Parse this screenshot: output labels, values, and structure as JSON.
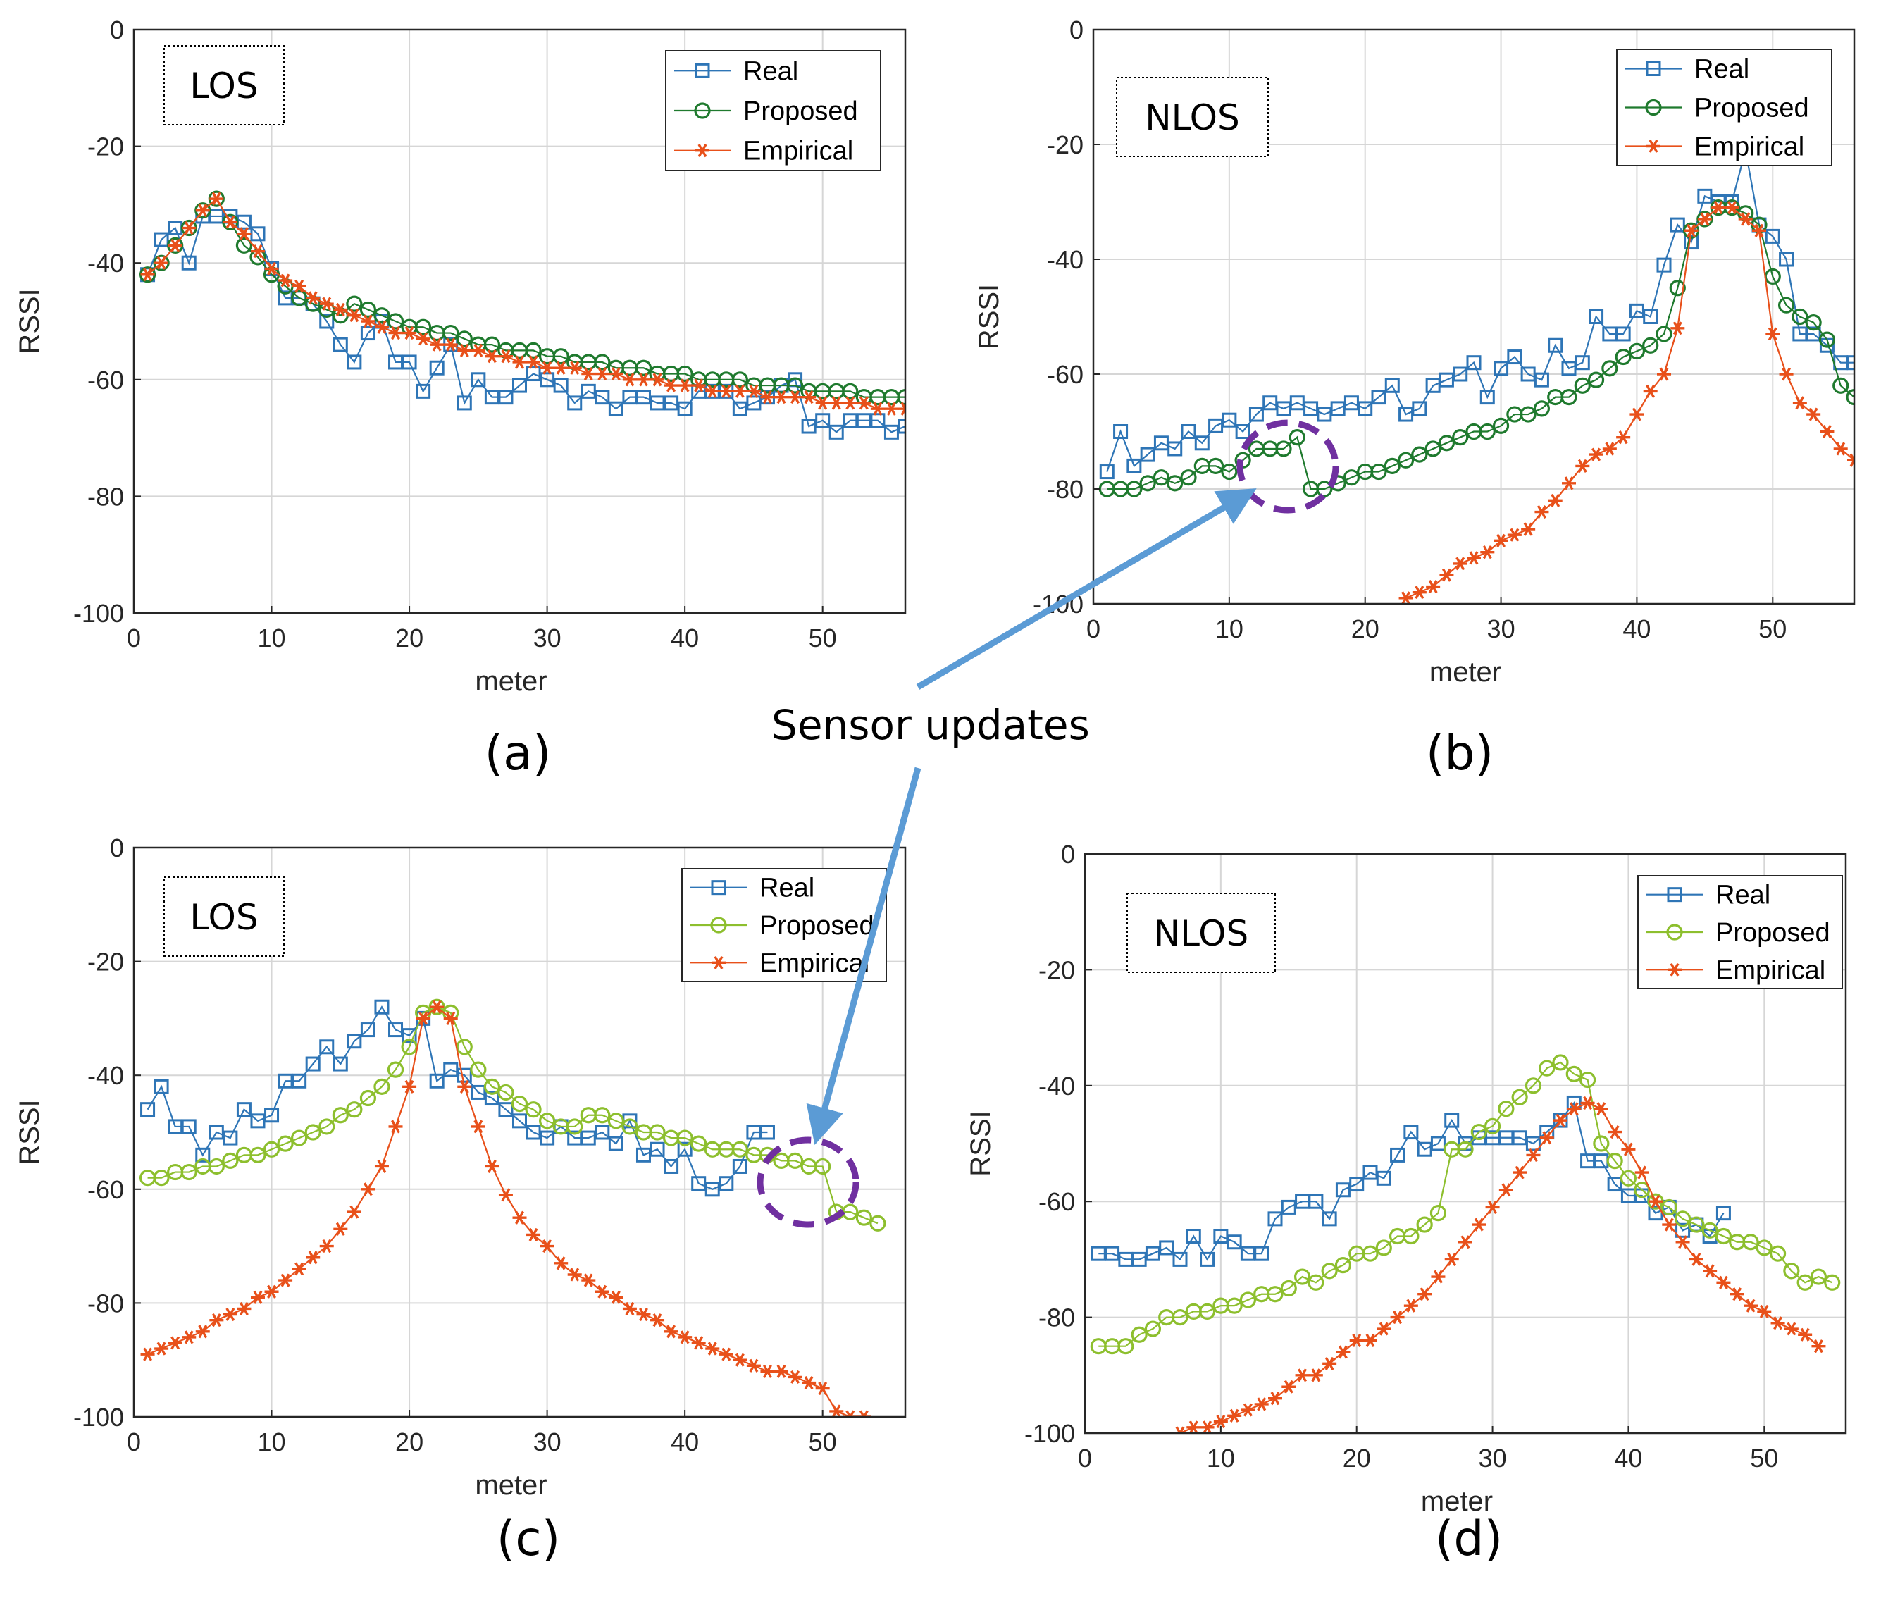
{
  "annotation": {
    "text": "Sensor updates"
  },
  "chart_data": [
    {
      "panel": "(a)",
      "type": "line",
      "tag": "LOS",
      "xlabel": "meter",
      "ylabel": "RSSI",
      "xlim": [
        0,
        56
      ],
      "ylim": [
        -100,
        0
      ],
      "xticks": [
        0,
        10,
        20,
        30,
        40,
        50
      ],
      "yticks": [
        0,
        -20,
        -40,
        -60,
        -80,
        -100
      ],
      "grid": true,
      "legend_position": "top-right",
      "series": [
        {
          "name": "Real",
          "marker": "square",
          "color": "#2E75B6",
          "x_start": 1,
          "values": [
            -42,
            -36,
            -34,
            -40,
            -32,
            -32,
            -32,
            -33,
            -35,
            -41,
            -46,
            -46,
            -47,
            -50,
            -54,
            -57,
            -52,
            -50,
            -57,
            -57,
            -62,
            -58,
            -54,
            -64,
            -60,
            -63,
            -63,
            -61,
            -59,
            -60,
            -61,
            -64,
            -62,
            -63,
            -65,
            -63,
            -63,
            -64,
            -64,
            -65,
            -62,
            -62,
            -62,
            -65,
            -64,
            -63,
            -61,
            -60,
            -68,
            -67,
            -69,
            -67,
            -67,
            -67,
            -69,
            -68
          ]
        },
        {
          "name": "Proposed",
          "marker": "circle",
          "color": "#1F7A2E",
          "x_start": 1,
          "values": [
            -42,
            -40,
            -37,
            -34,
            -31,
            -29,
            -33,
            -37,
            -39,
            -42,
            -44,
            -46,
            -47,
            -48,
            -49,
            -47,
            -48,
            -49,
            -50,
            -51,
            -51,
            -52,
            -52,
            -53,
            -54,
            -54,
            -55,
            -55,
            -55,
            -56,
            -56,
            -57,
            -57,
            -57,
            -58,
            -58,
            -58,
            -59,
            -59,
            -59,
            -60,
            -60,
            -60,
            -60,
            -61,
            -61,
            -61,
            -61,
            -62,
            -62,
            -62,
            -62,
            -63,
            -63,
            -63,
            -63
          ]
        },
        {
          "name": "Empirical",
          "marker": "star",
          "color": "#E8501A",
          "x_start": 1,
          "values": [
            -42,
            -40,
            -37,
            -34,
            -31,
            -29,
            -33,
            -35,
            -38,
            -41,
            -43,
            -44,
            -46,
            -47,
            -48,
            -49,
            -50,
            -51,
            -52,
            -52,
            -53,
            -54,
            -54,
            -55,
            -55,
            -56,
            -56,
            -57,
            -57,
            -58,
            -58,
            -58,
            -59,
            -59,
            -59,
            -60,
            -60,
            -60,
            -61,
            -61,
            -61,
            -62,
            -62,
            -62,
            -62,
            -63,
            -63,
            -63,
            -63,
            -64,
            -64,
            -64,
            -64,
            -65,
            -65,
            -65
          ]
        }
      ]
    },
    {
      "panel": "(b)",
      "type": "line",
      "tag": "NLOS",
      "xlabel": "meter",
      "ylabel": "RSSI",
      "xlim": [
        0,
        56
      ],
      "ylim": [
        -100,
        0
      ],
      "xticks": [
        0,
        10,
        20,
        30,
        40,
        50
      ],
      "yticks": [
        0,
        -20,
        -40,
        -60,
        -80,
        -100
      ],
      "grid": true,
      "legend_position": "top-right",
      "series": [
        {
          "name": "Real",
          "marker": "square",
          "color": "#2E75B6",
          "x_start": 1,
          "values": [
            -77,
            -70,
            -76,
            -74,
            -72,
            -73,
            -70,
            -72,
            -69,
            -68,
            -70,
            -67,
            -65,
            -66,
            -65,
            -66,
            -67,
            -66,
            -65,
            -66,
            -64,
            -62,
            -67,
            -66,
            -62,
            -61,
            -60,
            -58,
            -64,
            -59,
            -57,
            -60,
            -61,
            -55,
            -59,
            -58,
            -50,
            -53,
            -53,
            -49,
            -50,
            -41,
            -34,
            -37,
            -29,
            -30,
            -30,
            -21,
            -34,
            -36,
            -40,
            -53,
            -53,
            -55,
            -58,
            -58
          ]
        },
        {
          "name": "Proposed",
          "marker": "circle",
          "color": "#1F7A2E",
          "x_start": 1,
          "values": [
            -80,
            -80,
            -80,
            -79,
            -78,
            -79,
            -78,
            -76,
            -76,
            -77,
            -75,
            -73,
            -73,
            -73,
            -71,
            -80,
            -80,
            -79,
            -78,
            -77,
            -77,
            -76,
            -75,
            -74,
            -73,
            -72,
            -71,
            -70,
            -70,
            -69,
            -67,
            -67,
            -66,
            -64,
            -64,
            -62,
            -61,
            -59,
            -57,
            -56,
            -55,
            -53,
            -45,
            -35,
            -33,
            -31,
            -31,
            -32,
            -34,
            -43,
            -48,
            -50,
            -51,
            -54,
            -62,
            -64
          ]
        },
        {
          "name": "Empirical",
          "marker": "star",
          "color": "#E8501A",
          "x_start": 23,
          "values": [
            -99,
            -98,
            -97,
            -95,
            -93,
            -92,
            -91,
            -89,
            -88,
            -87,
            -84,
            -82,
            -79,
            -76,
            -74,
            -73,
            -71,
            -67,
            -63,
            -60,
            -52,
            -35,
            -33,
            -31,
            -31,
            -33,
            -35,
            -53,
            -60,
            -65,
            -67,
            -70,
            -73,
            -75
          ]
        }
      ]
    },
    {
      "panel": "(c)",
      "type": "line",
      "tag": "LOS",
      "xlabel": "meter",
      "ylabel": "RSSI",
      "xlim": [
        0,
        56
      ],
      "ylim": [
        -100,
        0
      ],
      "xticks": [
        0,
        10,
        20,
        30,
        40,
        50
      ],
      "yticks": [
        0,
        -20,
        -40,
        -60,
        -80,
        -100
      ],
      "grid": true,
      "legend_position": "top-right",
      "series": [
        {
          "name": "Real",
          "marker": "square",
          "color": "#2E75B6",
          "x_start": 1,
          "values": [
            -46,
            -42,
            -49,
            -49,
            -54,
            -50,
            -51,
            -46,
            -48,
            -47,
            -41,
            -41,
            -38,
            -35,
            -38,
            -34,
            -32,
            -28,
            -32,
            -33,
            -30,
            -41,
            -39,
            -40,
            -43,
            -44,
            -46,
            -48,
            -50,
            -51,
            -49,
            -51,
            -51,
            -50,
            -52,
            -48,
            -54,
            -53,
            -56,
            -53,
            -59,
            -60,
            -59,
            -56,
            -50,
            -50
          ]
        },
        {
          "name": "Proposed",
          "marker": "circle",
          "color": "#8DBF2E",
          "x_start": 1,
          "values": [
            -58,
            -58,
            -57,
            -57,
            -56,
            -56,
            -55,
            -54,
            -54,
            -53,
            -52,
            -51,
            -50,
            -49,
            -47,
            -46,
            -44,
            -42,
            -39,
            -35,
            -29,
            -28,
            -29,
            -35,
            -39,
            -42,
            -43,
            -45,
            -46,
            -48,
            -49,
            -49,
            -47,
            -47,
            -48,
            -49,
            -50,
            -50,
            -51,
            -51,
            -52,
            -53,
            -53,
            -53,
            -54,
            -54,
            -55,
            -55,
            -56,
            -56,
            -64,
            -64,
            -65,
            -66
          ]
        },
        {
          "name": "Empirical",
          "marker": "star",
          "color": "#E8501A",
          "x_start": 1,
          "values": [
            -89,
            -88,
            -87,
            -86,
            -85,
            -83,
            -82,
            -81,
            -79,
            -78,
            -76,
            -74,
            -72,
            -70,
            -67,
            -64,
            -60,
            -56,
            -49,
            -42,
            -30,
            -28,
            -30,
            -42,
            -49,
            -56,
            -61,
            -65,
            -68,
            -70,
            -73,
            -75,
            -76,
            -78,
            -79,
            -81,
            -82,
            -83,
            -85,
            -86,
            -87,
            -88,
            -89,
            -90,
            -91,
            -92,
            -92,
            -93,
            -94,
            -95,
            -99,
            -100,
            -100
          ]
        }
      ]
    },
    {
      "panel": "(d)",
      "type": "line",
      "tag": "NLOS",
      "xlabel": "meter",
      "ylabel": "RSSI",
      "xlim": [
        0,
        56
      ],
      "ylim": [
        -100,
        0
      ],
      "xticks": [
        0,
        10,
        20,
        30,
        40,
        50
      ],
      "yticks": [
        0,
        -20,
        -40,
        -60,
        -80,
        -100
      ],
      "grid": true,
      "legend_position": "top-right",
      "series": [
        {
          "name": "Real",
          "marker": "square",
          "color": "#2E75B6",
          "x_start": 1,
          "values": [
            -69,
            -69,
            -70,
            -70,
            -69,
            -68,
            -70,
            -66,
            -70,
            -66,
            -67,
            -69,
            -69,
            -63,
            -61,
            -60,
            -60,
            -63,
            -58,
            -57,
            -55,
            -56,
            -52,
            -48,
            -51,
            -50,
            -46,
            -50,
            -49,
            -49,
            -49,
            -49,
            -50,
            -48,
            -46,
            -43,
            -53,
            -53,
            -57,
            -59,
            -59,
            -62,
            -61,
            -65,
            -64,
            -66,
            -62
          ]
        },
        {
          "name": "Proposed",
          "marker": "circle",
          "color": "#8DBF2E",
          "x_start": 1,
          "values": [
            -85,
            -85,
            -85,
            -83,
            -82,
            -80,
            -80,
            -79,
            -79,
            -78,
            -78,
            -77,
            -76,
            -76,
            -75,
            -73,
            -74,
            -72,
            -71,
            -69,
            -69,
            -68,
            -66,
            -66,
            -64,
            -62,
            -51,
            -51,
            -48,
            -47,
            -44,
            -42,
            -40,
            -37,
            -36,
            -38,
            -39,
            -50,
            -53,
            -56,
            -58,
            -60,
            -61,
            -63,
            -64,
            -65,
            -66,
            -67,
            -67,
            -68,
            -69,
            -72,
            -74,
            -73,
            -74
          ]
        },
        {
          "name": "Empirical",
          "marker": "star",
          "color": "#E8501A",
          "x_start": 7,
          "values": [
            -100,
            -99,
            -99,
            -98,
            -97,
            -96,
            -95,
            -94,
            -92,
            -90,
            -90,
            -88,
            -86,
            -84,
            -84,
            -82,
            -80,
            -78,
            -76,
            -73,
            -70,
            -67,
            -64,
            -61,
            -58,
            -55,
            -52,
            -49,
            -46,
            -44,
            -43,
            -44,
            -48,
            -51,
            -55,
            -60,
            -64,
            -67,
            -70,
            -72,
            -74,
            -76,
            -78,
            -79,
            -81,
            -82,
            -83,
            -85
          ]
        }
      ]
    }
  ]
}
